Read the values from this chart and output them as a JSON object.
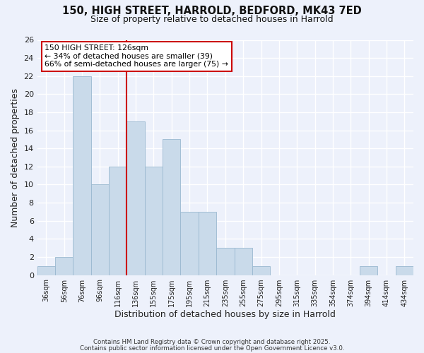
{
  "title_line1": "150, HIGH STREET, HARROLD, BEDFORD, MK43 7ED",
  "title_line2": "Size of property relative to detached houses in Harrold",
  "xlabel": "Distribution of detached houses by size in Harrold",
  "ylabel": "Number of detached properties",
  "bar_labels": [
    "36sqm",
    "56sqm",
    "76sqm",
    "96sqm",
    "116sqm",
    "136sqm",
    "155sqm",
    "175sqm",
    "195sqm",
    "215sqm",
    "235sqm",
    "255sqm",
    "275sqm",
    "295sqm",
    "315sqm",
    "335sqm",
    "354sqm",
    "374sqm",
    "394sqm",
    "414sqm",
    "434sqm"
  ],
  "bar_values": [
    1,
    2,
    22,
    10,
    12,
    17,
    12,
    15,
    7,
    7,
    3,
    3,
    1,
    0,
    0,
    0,
    0,
    0,
    1,
    0,
    1
  ],
  "bar_color": "#c9daea",
  "bar_edge_color": "#9ab8d0",
  "vline_color": "#cc0000",
  "annotation_text": "150 HIGH STREET: 126sqm\n← 34% of detached houses are smaller (39)\n66% of semi-detached houses are larger (75) →",
  "annotation_box_facecolor": "white",
  "annotation_box_edgecolor": "#cc0000",
  "ylim": [
    0,
    26
  ],
  "yticks": [
    0,
    2,
    4,
    6,
    8,
    10,
    12,
    14,
    16,
    18,
    20,
    22,
    24,
    26
  ],
  "background_color": "#edf1fb",
  "grid_color": "white",
  "footnote1": "Contains HM Land Registry data © Crown copyright and database right 2025.",
  "footnote2": "Contains public sector information licensed under the Open Government Licence v3.0."
}
